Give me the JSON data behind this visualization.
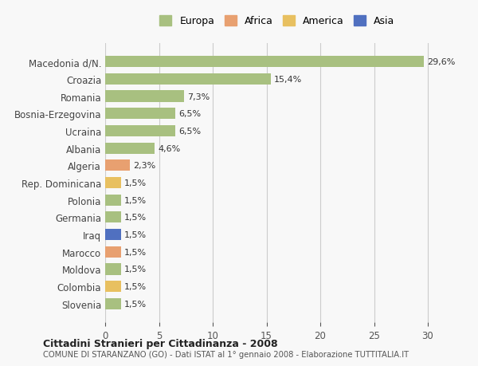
{
  "countries": [
    "Slovenia",
    "Colombia",
    "Moldova",
    "Marocco",
    "Iraq",
    "Germania",
    "Polonia",
    "Rep. Dominicana",
    "Algeria",
    "Albania",
    "Ucraina",
    "Bosnia-Erzegovina",
    "Romania",
    "Croazia",
    "Macedonia d/N."
  ],
  "values": [
    1.5,
    1.5,
    1.5,
    1.5,
    1.5,
    1.5,
    1.5,
    1.5,
    2.3,
    4.6,
    6.5,
    6.5,
    7.3,
    15.4,
    29.6
  ],
  "labels": [
    "1,5%",
    "1,5%",
    "1,5%",
    "1,5%",
    "1,5%",
    "1,5%",
    "1,5%",
    "1,5%",
    "2,3%",
    "4,6%",
    "6,5%",
    "6,5%",
    "7,3%",
    "15,4%",
    "29,6%"
  ],
  "colors": [
    "#a8c080",
    "#e8c060",
    "#a8c080",
    "#e8a070",
    "#5070c0",
    "#a8c080",
    "#a8c080",
    "#e8c060",
    "#e8a070",
    "#a8c080",
    "#a8c080",
    "#a8c080",
    "#a8c080",
    "#a8c080",
    "#a8c080"
  ],
  "legend_labels": [
    "Europa",
    "Africa",
    "America",
    "Asia"
  ],
  "legend_colors": [
    "#a8c080",
    "#e8a070",
    "#e8c060",
    "#5070c0"
  ],
  "title1": "Cittadini Stranieri per Cittadinanza - 2008",
  "title2": "COMUNE DI STARANZANO (GO) - Dati ISTAT al 1° gennaio 2008 - Elaborazione TUTTITALIA.IT",
  "xlim": [
    0,
    32
  ],
  "xticks": [
    0,
    5,
    10,
    15,
    20,
    25,
    30
  ],
  "bg_color": "#f8f8f8",
  "grid_color": "#cccccc",
  "bar_height": 0.65
}
